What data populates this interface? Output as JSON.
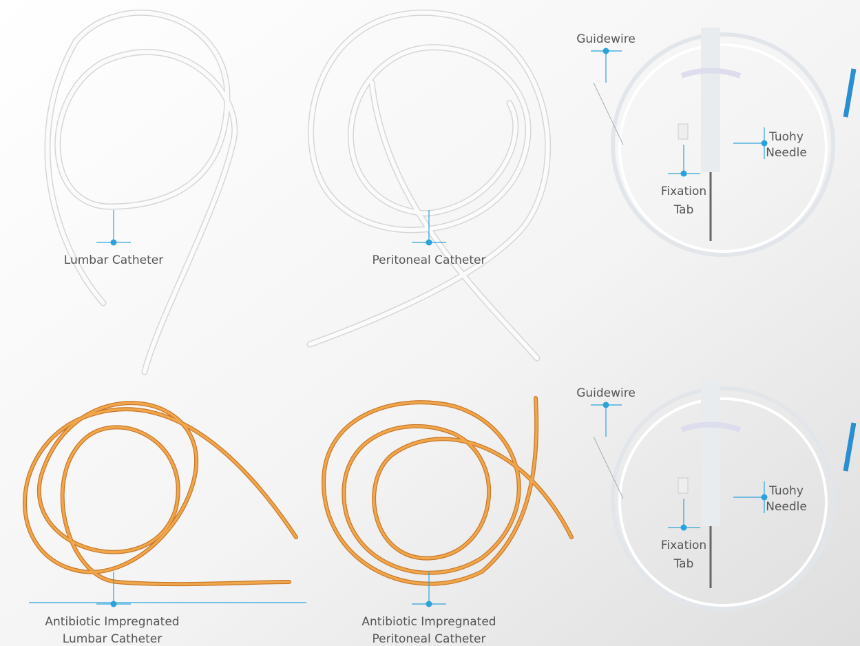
{
  "products": [
    {
      "label": [
        "Lumbar Catheter"
      ]
    },
    {
      "label": [
        "Peritoneal Catheter"
      ]
    },
    {
      "parts": [
        {
          "label": [
            "Guidewire"
          ]
        },
        {
          "label": [
            "Tuohy",
            "Needle"
          ]
        },
        {
          "label": [
            "Fixation",
            "Tab"
          ]
        }
      ]
    },
    {
      "label": [
        "Antibiotic Impregnated",
        "Lumbar Catheter"
      ]
    },
    {
      "label": [
        "Antibiotic Impregnated",
        "Peritoneal Catheter"
      ]
    },
    {
      "parts": [
        {
          "label": [
            "Guidewire"
          ]
        },
        {
          "label": [
            "Tuohy",
            "Needle"
          ]
        },
        {
          "label": [
            "Fixation",
            "Tab"
          ]
        }
      ]
    }
  ]
}
